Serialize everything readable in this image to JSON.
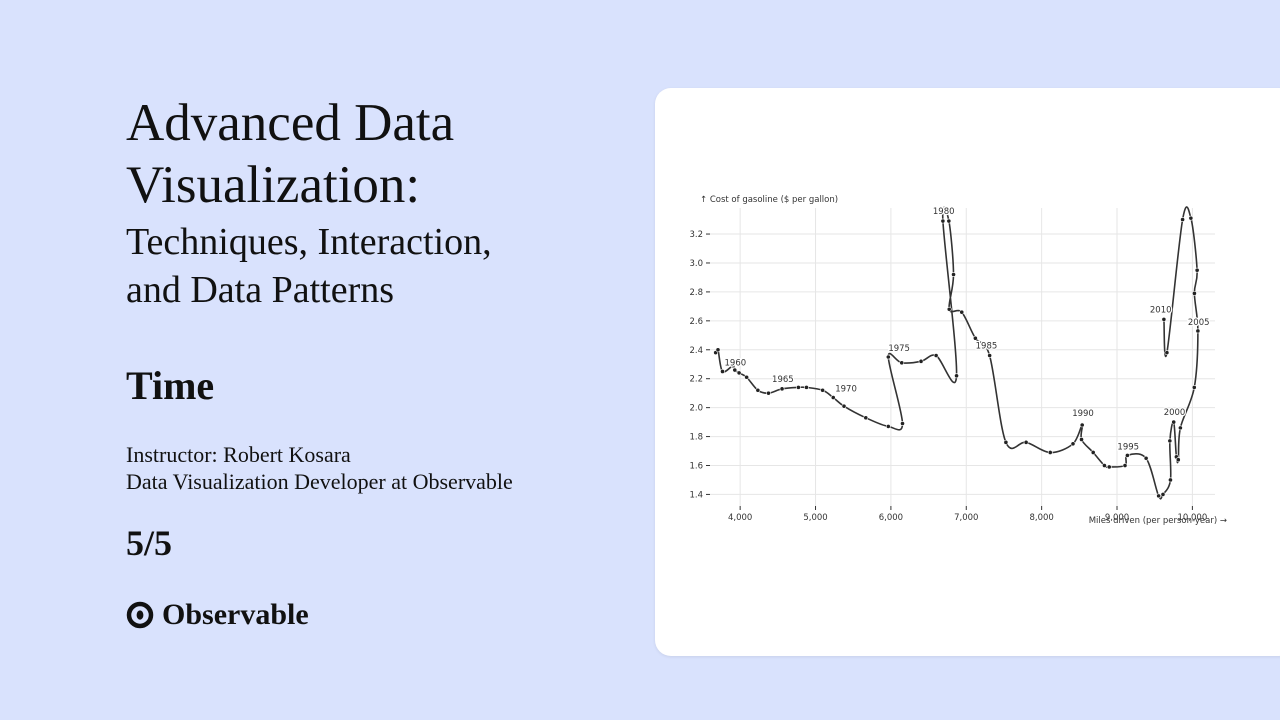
{
  "slide": {
    "title": "Advanced Data Visualization:",
    "subtitle_line1": "Techniques, Interaction,",
    "subtitle_line2": "and Data Patterns",
    "section": "Time",
    "instructor_line1": "Instructor: Robert Kosara",
    "instructor_line2": "Data Visualization Developer at Observable",
    "page_indicator": "5/5",
    "brand": "Observable",
    "brand_icon": "observable-logo-icon"
  },
  "colors": {
    "background": "#d9e2fd",
    "card": "#ffffff",
    "line": "#333333",
    "grid": "#e6e6e6"
  },
  "chart_data": {
    "type": "line",
    "subtype": "connected-scatter",
    "ylabel": "↑ Cost of gasoline ($ per gallon)",
    "xlabel": "Miles driven (per person-year) →",
    "xlim": [
      3600,
      10300
    ],
    "ylim": [
      1.32,
      3.38
    ],
    "x_ticks": [
      4000,
      5000,
      6000,
      7000,
      8000,
      9000,
      10000
    ],
    "x_tick_labels": [
      "4,000",
      "5,000",
      "6,000",
      "7,000",
      "8,000",
      "9,000",
      "10,000"
    ],
    "y_ticks": [
      1.4,
      1.6,
      1.8,
      2.0,
      2.2,
      2.4,
      2.6,
      2.8,
      3.0,
      3.2
    ],
    "y_tick_labels": [
      "1.4",
      "1.6",
      "1.8",
      "2.0",
      "2.2",
      "2.4",
      "2.6",
      "2.8",
      "3.0",
      "3.2"
    ],
    "grid": true,
    "points": [
      {
        "x": 3675,
        "y": 2.38
      },
      {
        "x": 3706,
        "y": 2.4
      },
      {
        "x": 3766,
        "y": 2.25
      },
      {
        "x": 3905,
        "y": 2.29
      },
      {
        "x": 3929,
        "y": 2.26
      },
      {
        "x": 3986,
        "y": 2.24
      },
      {
        "x": 4086,
        "y": 2.21
      },
      {
        "x": 4235,
        "y": 2.12
      },
      {
        "x": 4376,
        "y": 2.1
      },
      {
        "x": 4556,
        "y": 2.13
      },
      {
        "x": 4773,
        "y": 2.14
      },
      {
        "x": 4880,
        "y": 2.14
      },
      {
        "x": 5094,
        "y": 2.12
      },
      {
        "x": 5235,
        "y": 2.07
      },
      {
        "x": 5378,
        "y": 2.01
      },
      {
        "x": 5667,
        "y": 1.93
      },
      {
        "x": 5966,
        "y": 1.87
      },
      {
        "x": 6154,
        "y": 1.89
      },
      {
        "x": 5966,
        "y": 2.35
      },
      {
        "x": 6144,
        "y": 2.31
      },
      {
        "x": 6400,
        "y": 2.32
      },
      {
        "x": 6600,
        "y": 2.36
      },
      {
        "x": 6871,
        "y": 2.22
      },
      {
        "x": 6690,
        "y": 3.29
      },
      {
        "x": 6769,
        "y": 3.29
      },
      {
        "x": 6831,
        "y": 2.92
      },
      {
        "x": 6774,
        "y": 2.68
      },
      {
        "x": 6940,
        "y": 2.66
      },
      {
        "x": 7121,
        "y": 2.48
      },
      {
        "x": 7310,
        "y": 2.36
      },
      {
        "x": 7526,
        "y": 1.76
      },
      {
        "x": 7794,
        "y": 1.76
      },
      {
        "x": 8114,
        "y": 1.69
      },
      {
        "x": 8416,
        "y": 1.75
      },
      {
        "x": 8538,
        "y": 1.88
      },
      {
        "x": 8529,
        "y": 1.78
      },
      {
        "x": 8684,
        "y": 1.69
      },
      {
        "x": 8833,
        "y": 1.6
      },
      {
        "x": 8897,
        "y": 1.59
      },
      {
        "x": 9106,
        "y": 1.6
      },
      {
        "x": 9138,
        "y": 1.67
      },
      {
        "x": 9386,
        "y": 1.65
      },
      {
        "x": 9552,
        "y": 1.39
      },
      {
        "x": 9610,
        "y": 1.4
      },
      {
        "x": 9709,
        "y": 1.5
      },
      {
        "x": 9701,
        "y": 1.77
      },
      {
        "x": 9752,
        "y": 1.9
      },
      {
        "x": 9788,
        "y": 1.66
      },
      {
        "x": 9813,
        "y": 1.64
      },
      {
        "x": 9841,
        "y": 1.86
      },
      {
        "x": 10025,
        "y": 2.14
      },
      {
        "x": 10073,
        "y": 2.53
      },
      {
        "x": 10027,
        "y": 2.79
      },
      {
        "x": 10063,
        "y": 2.95
      },
      {
        "x": 9980,
        "y": 3.31
      },
      {
        "x": 9870,
        "y": 3.3
      },
      {
        "x": 9662,
        "y": 2.38
      },
      {
        "x": 9622,
        "y": 2.61
      }
    ],
    "annotations": [
      {
        "label": "1960",
        "point": 2,
        "dx": 2,
        "dy": -6
      },
      {
        "label": "1965",
        "point": 9,
        "dx": -10,
        "dy": -7
      },
      {
        "label": "1970",
        "point": 13,
        "dx": 2,
        "dy": -6
      },
      {
        "label": "1975",
        "point": 18,
        "dx": 0,
        "dy": -6
      },
      {
        "label": "1980",
        "point": 23,
        "dx": -10,
        "dy": -7
      },
      {
        "label": "1985",
        "point": 29,
        "dx": -14,
        "dy": -7
      },
      {
        "label": "1990",
        "point": 34,
        "dx": -10,
        "dy": -9
      },
      {
        "label": "1995",
        "point": 40,
        "dx": -10,
        "dy": -6
      },
      {
        "label": "2000",
        "point": 46,
        "dx": -10,
        "dy": -7
      },
      {
        "label": "2005",
        "point": 51,
        "dx": -10,
        "dy": -6
      },
      {
        "label": "2010",
        "point": 57,
        "dx": -14,
        "dy": -7
      }
    ]
  }
}
